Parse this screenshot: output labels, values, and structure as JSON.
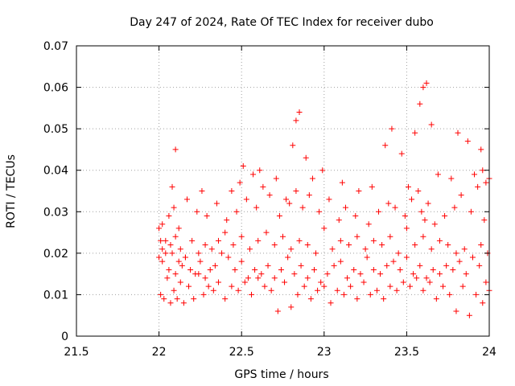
{
  "chart_data": {
    "type": "scatter",
    "title": "Day 247 of 2024, Rate Of TEC Index for receiver dubo",
    "xlabel": "GPS time / hours",
    "ylabel": "ROTI / TECUs",
    "xlim": [
      21.5,
      24.0
    ],
    "ylim": [
      0,
      0.07
    ],
    "x_ticks": [
      21.5,
      22.0,
      22.5,
      23.0,
      23.5,
      24.0
    ],
    "x_tick_labels": [
      "21.5",
      "22",
      "22.5",
      "23",
      "23.5",
      "24"
    ],
    "y_ticks": [
      0,
      0.01,
      0.02,
      0.03,
      0.04,
      0.05,
      0.06,
      0.07
    ],
    "y_tick_labels": [
      "0",
      "0.01",
      "0.02",
      "0.03",
      "0.04",
      "0.05",
      "0.06",
      "0.07"
    ],
    "grid": true,
    "marker": "+",
    "color": "#ff0000",
    "series": [
      {
        "x": [
          22.0,
          22.01,
          22.02,
          22.03,
          22.05,
          22.07,
          22.09,
          22.11,
          22.13,
          22.15,
          22.18,
          22.21,
          22.24,
          22.27,
          22.3,
          22.33,
          22.36,
          22.4,
          22.44,
          22.48,
          22.52,
          22.56,
          22.6,
          22.64,
          22.68,
          22.72,
          22.76,
          22.8,
          22.84,
          22.88,
          22.92,
          22.96,
          23.0,
          23.04,
          23.08,
          23.12,
          23.16,
          23.2,
          23.24,
          23.28,
          23.32,
          23.36,
          23.4,
          23.44,
          23.48,
          23.52,
          23.56,
          23.6,
          23.64,
          23.68,
          23.72,
          23.76,
          23.8,
          23.84,
          23.88,
          23.92,
          23.96,
          24.0,
          22.0,
          22.02,
          22.04,
          22.06,
          22.08,
          22.1,
          22.12,
          22.14,
          22.16,
          22.19,
          22.22,
          22.25,
          22.28,
          22.31,
          22.34,
          22.38,
          22.42,
          22.46,
          22.5,
          22.54,
          22.58,
          22.62,
          22.66,
          22.7,
          22.74,
          22.78,
          22.82,
          22.86,
          22.9,
          22.94,
          22.98,
          23.02,
          23.06,
          23.1,
          23.14,
          23.18,
          23.22,
          23.26,
          23.3,
          23.34,
          23.38,
          23.42,
          23.46,
          23.5,
          23.54,
          23.58,
          23.62,
          23.66,
          23.7,
          23.74,
          23.78,
          23.82,
          23.86,
          23.9,
          23.94,
          23.98,
          22.01,
          22.04,
          22.07,
          22.1,
          22.13,
          22.16,
          22.2,
          22.24,
          22.28,
          22.32,
          22.36,
          22.4,
          22.45,
          22.5,
          22.55,
          22.6,
          22.65,
          22.7,
          22.75,
          22.8,
          22.85,
          22.9,
          22.95,
          23.0,
          23.05,
          23.1,
          23.15,
          23.2,
          23.25,
          23.3,
          23.35,
          23.4,
          23.45,
          23.5,
          23.55,
          23.6,
          23.65,
          23.7,
          23.75,
          23.8,
          23.85,
          23.9,
          23.95,
          23.99,
          22.02,
          22.06,
          22.09,
          22.12,
          22.17,
          22.23,
          22.29,
          22.35,
          22.41,
          22.47,
          22.53,
          22.59,
          22.63,
          22.67,
          22.73,
          22.79,
          22.83,
          22.87,
          22.91,
          22.97,
          23.03,
          23.09,
          23.13,
          23.19,
          23.27,
          23.33,
          23.39,
          23.43,
          23.49,
          23.53,
          23.57,
          23.59,
          23.61,
          23.63,
          23.67,
          23.73,
          23.79,
          23.83,
          23.89,
          23.93,
          23.97,
          22.08,
          22.1,
          22.26,
          22.44,
          22.49,
          22.51,
          22.57,
          22.61,
          22.71,
          22.77,
          22.81,
          22.83,
          22.85,
          22.89,
          22.93,
          22.99,
          23.11,
          23.21,
          23.29,
          23.37,
          23.41,
          23.47,
          23.51,
          23.55,
          23.58,
          23.6,
          23.62,
          23.65,
          23.69,
          23.77,
          23.81,
          23.87,
          23.91,
          23.95,
          23.96,
          23.98,
          24.0
        ],
        "y": [
          0.019,
          0.01,
          0.021,
          0.009,
          0.014,
          0.008,
          0.011,
          0.009,
          0.013,
          0.008,
          0.012,
          0.009,
          0.015,
          0.01,
          0.012,
          0.011,
          0.013,
          0.009,
          0.012,
          0.011,
          0.013,
          0.01,
          0.014,
          0.012,
          0.011,
          0.006,
          0.013,
          0.007,
          0.01,
          0.012,
          0.009,
          0.011,
          0.012,
          0.008,
          0.011,
          0.01,
          0.012,
          0.009,
          0.013,
          0.01,
          0.011,
          0.009,
          0.012,
          0.011,
          0.013,
          0.012,
          0.014,
          0.011,
          0.013,
          0.009,
          0.012,
          0.01,
          0.006,
          0.012,
          0.005,
          0.01,
          0.008,
          0.011,
          0.026,
          0.018,
          0.023,
          0.016,
          0.02,
          0.015,
          0.018,
          0.017,
          0.019,
          0.016,
          0.015,
          0.018,
          0.014,
          0.016,
          0.017,
          0.02,
          0.019,
          0.016,
          0.018,
          0.014,
          0.016,
          0.015,
          0.017,
          0.014,
          0.016,
          0.019,
          0.015,
          0.017,
          0.014,
          0.016,
          0.013,
          0.015,
          0.017,
          0.018,
          0.014,
          0.016,
          0.015,
          0.019,
          0.016,
          0.015,
          0.017,
          0.018,
          0.016,
          0.019,
          0.015,
          0.017,
          0.014,
          0.016,
          0.015,
          0.017,
          0.016,
          0.018,
          0.015,
          0.019,
          0.017,
          0.013,
          0.023,
          0.02,
          0.022,
          0.024,
          0.021,
          0.019,
          0.023,
          0.02,
          0.022,
          0.021,
          0.023,
          0.025,
          0.022,
          0.024,
          0.021,
          0.023,
          0.025,
          0.022,
          0.024,
          0.021,
          0.023,
          0.022,
          0.02,
          0.026,
          0.021,
          0.023,
          0.022,
          0.024,
          0.021,
          0.023,
          0.022,
          0.024,
          0.02,
          0.026,
          0.022,
          0.024,
          0.021,
          0.023,
          0.022,
          0.02,
          0.021,
          0.019,
          0.022,
          0.02,
          0.027,
          0.029,
          0.031,
          0.026,
          0.033,
          0.03,
          0.029,
          0.032,
          0.028,
          0.03,
          0.033,
          0.031,
          0.036,
          0.034,
          0.029,
          0.032,
          0.035,
          0.031,
          0.034,
          0.03,
          0.033,
          0.028,
          0.031,
          0.029,
          0.027,
          0.03,
          0.032,
          0.031,
          0.029,
          0.033,
          0.035,
          0.03,
          0.028,
          0.032,
          0.027,
          0.029,
          0.031,
          0.034,
          0.03,
          0.036,
          0.028,
          0.036,
          0.045,
          0.035,
          0.035,
          0.037,
          0.041,
          0.039,
          0.04,
          0.038,
          0.033,
          0.046,
          0.052,
          0.054,
          0.043,
          0.038,
          0.04,
          0.037,
          0.035,
          0.036,
          0.046,
          0.05,
          0.044,
          0.036,
          0.049,
          0.056,
          0.06,
          0.061,
          0.051,
          0.039,
          0.038,
          0.049,
          0.047,
          0.039,
          0.045,
          0.04,
          0.037,
          0.038
        ]
      }
    ]
  }
}
